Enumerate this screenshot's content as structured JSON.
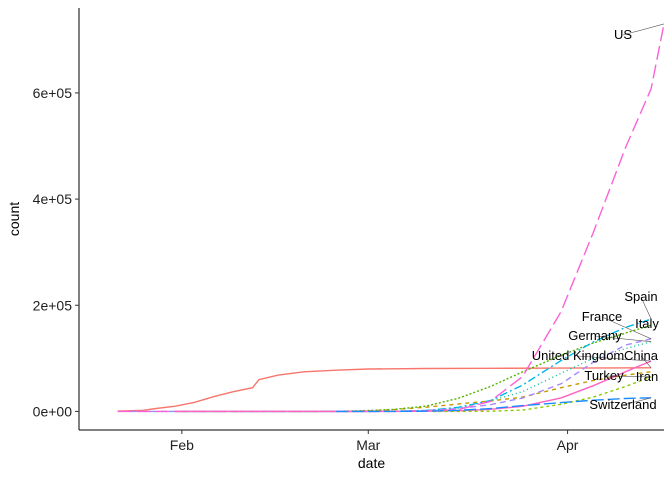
{
  "chart_data": {
    "type": "line",
    "title": "",
    "xlabel": "date",
    "ylabel": "count",
    "x_axis": {
      "scale": "date",
      "range": [
        "2020-01-16",
        "2020-04-16"
      ],
      "ticks": [
        {
          "date": "2020-02-01",
          "label": "Feb"
        },
        {
          "date": "2020-03-01",
          "label": "Mar"
        },
        {
          "date": "2020-04-01",
          "label": "Apr"
        }
      ]
    },
    "y_axis": {
      "range": [
        -35000,
        760000
      ],
      "ticks": [
        {
          "value": 0,
          "label": "0e+00"
        },
        {
          "value": 200000,
          "label": "2e+05"
        },
        {
          "value": 400000,
          "label": "4e+05"
        },
        {
          "value": 600000,
          "label": "6e+05"
        }
      ]
    },
    "grid": false,
    "legend": "direct labels at line ends",
    "series": [
      {
        "name": "China",
        "color": "#F8766D",
        "dash": "solid",
        "points": [
          [
            "2020-01-22",
            550
          ],
          [
            "2020-01-26",
            2100
          ],
          [
            "2020-01-28",
            5500
          ],
          [
            "2020-01-31",
            9800
          ],
          [
            "2020-02-03",
            17200
          ],
          [
            "2020-02-06",
            28000
          ],
          [
            "2020-02-09",
            37200
          ],
          [
            "2020-02-12",
            44700
          ],
          [
            "2020-02-13",
            59900
          ],
          [
            "2020-02-16",
            68500
          ],
          [
            "2020-02-20",
            74600
          ],
          [
            "2020-02-25",
            77700
          ],
          [
            "2020-03-01",
            79900
          ],
          [
            "2020-03-10",
            80800
          ],
          [
            "2020-03-20",
            81250
          ],
          [
            "2020-03-31",
            81550
          ],
          [
            "2020-04-08",
            81900
          ],
          [
            "2020-04-14",
            82250
          ]
        ]
      },
      {
        "name": "Iran",
        "color": "#C49A00",
        "dash": "4,4",
        "points": [
          [
            "2020-02-19",
            2
          ],
          [
            "2020-02-25",
            95
          ],
          [
            "2020-03-01",
            980
          ],
          [
            "2020-03-05",
            3500
          ],
          [
            "2020-03-10",
            8000
          ],
          [
            "2020-03-15",
            14000
          ],
          [
            "2020-03-20",
            19600
          ],
          [
            "2020-03-25",
            27000
          ],
          [
            "2020-03-31",
            44600
          ],
          [
            "2020-04-05",
            58200
          ],
          [
            "2020-04-10",
            68200
          ],
          [
            "2020-04-14",
            74900
          ]
        ]
      },
      {
        "name": "Italy",
        "color": "#53B400",
        "dash": "2,2",
        "points": [
          [
            "2020-01-31",
            2
          ],
          [
            "2020-02-21",
            20
          ],
          [
            "2020-02-25",
            320
          ],
          [
            "2020-03-01",
            1700
          ],
          [
            "2020-03-05",
            3900
          ],
          [
            "2020-03-10",
            10100
          ],
          [
            "2020-03-15",
            24700
          ],
          [
            "2020-03-20",
            47000
          ],
          [
            "2020-03-25",
            74400
          ],
          [
            "2020-03-31",
            105800
          ],
          [
            "2020-04-05",
            128900
          ],
          [
            "2020-04-10",
            147600
          ],
          [
            "2020-04-14",
            162500
          ]
        ]
      },
      {
        "name": "Germany",
        "color": "#00C094",
        "dash": "1,3",
        "points": [
          [
            "2020-01-27",
            1
          ],
          [
            "2020-02-25",
            18
          ],
          [
            "2020-03-01",
            130
          ],
          [
            "2020-03-05",
            480
          ],
          [
            "2020-03-10",
            1460
          ],
          [
            "2020-03-15",
            5800
          ],
          [
            "2020-03-20",
            19800
          ],
          [
            "2020-03-25",
            37300
          ],
          [
            "2020-03-31",
            71800
          ],
          [
            "2020-04-05",
            100100
          ],
          [
            "2020-04-10",
            118200
          ],
          [
            "2020-04-14",
            131300
          ]
        ]
      },
      {
        "name": "Spain",
        "color": "#00B6EB",
        "dash": "8,3,2,3",
        "points": [
          [
            "2020-02-01",
            1
          ],
          [
            "2020-02-25",
            6
          ],
          [
            "2020-03-01",
            84
          ],
          [
            "2020-03-05",
            260
          ],
          [
            "2020-03-10",
            1700
          ],
          [
            "2020-03-15",
            7800
          ],
          [
            "2020-03-20",
            20400
          ],
          [
            "2020-03-25",
            49500
          ],
          [
            "2020-03-31",
            95900
          ],
          [
            "2020-04-05",
            130800
          ],
          [
            "2020-04-10",
            158300
          ],
          [
            "2020-04-14",
            174000
          ]
        ]
      },
      {
        "name": "France",
        "color": "#A58AFF",
        "dash": "6,4",
        "points": [
          [
            "2020-01-24",
            2
          ],
          [
            "2020-02-25",
            14
          ],
          [
            "2020-03-01",
            130
          ],
          [
            "2020-03-05",
            420
          ],
          [
            "2020-03-10",
            1800
          ],
          [
            "2020-03-15",
            5400
          ],
          [
            "2020-03-20",
            12600
          ],
          [
            "2020-03-25",
            25200
          ],
          [
            "2020-03-31",
            52100
          ],
          [
            "2020-04-05",
            92800
          ],
          [
            "2020-04-10",
            125000
          ],
          [
            "2020-04-14",
            136800
          ]
        ]
      },
      {
        "name": "US",
        "color": "#FB61D7",
        "dash": "14,5",
        "points": [
          [
            "2020-01-22",
            1
          ],
          [
            "2020-02-25",
            15
          ],
          [
            "2020-03-01",
            75
          ],
          [
            "2020-03-05",
            230
          ],
          [
            "2020-03-10",
            990
          ],
          [
            "2020-03-15",
            3500
          ],
          [
            "2020-03-20",
            19100
          ],
          [
            "2020-03-25",
            65800
          ],
          [
            "2020-03-31",
            188100
          ],
          [
            "2020-04-05",
            337000
          ],
          [
            "2020-04-10",
            496500
          ],
          [
            "2020-04-14",
            607700
          ],
          [
            "2020-04-16",
            730000
          ]
        ]
      },
      {
        "name": "United Kingdom",
        "color": "#FF61C3",
        "dash": "solid",
        "points": [
          [
            "2020-01-31",
            2
          ],
          [
            "2020-02-25",
            13
          ],
          [
            "2020-03-01",
            36
          ],
          [
            "2020-03-05",
            115
          ],
          [
            "2020-03-10",
            380
          ],
          [
            "2020-03-15",
            1140
          ],
          [
            "2020-03-20",
            4000
          ],
          [
            "2020-03-25",
            9600
          ],
          [
            "2020-03-31",
            25500
          ],
          [
            "2020-04-05",
            48400
          ],
          [
            "2020-04-10",
            74600
          ],
          [
            "2020-04-14",
            94800
          ]
        ]
      },
      {
        "name": "Turkey",
        "color": "#8BCB00",
        "dash": "3,3",
        "points": [
          [
            "2020-03-11",
            1
          ],
          [
            "2020-03-15",
            18
          ],
          [
            "2020-03-20",
            360
          ],
          [
            "2020-03-25",
            2430
          ],
          [
            "2020-03-31",
            13500
          ],
          [
            "2020-04-05",
            27000
          ],
          [
            "2020-04-10",
            47000
          ],
          [
            "2020-04-14",
            65100
          ]
        ]
      },
      {
        "name": "Switzerland",
        "color": "#1A8CFF",
        "dash": "12,4",
        "points": [
          [
            "2020-02-25",
            1
          ],
          [
            "2020-03-01",
            42
          ],
          [
            "2020-03-05",
            90
          ],
          [
            "2020-03-10",
            490
          ],
          [
            "2020-03-15",
            2200
          ],
          [
            "2020-03-20",
            5300
          ],
          [
            "2020-03-25",
            10900
          ],
          [
            "2020-03-31",
            16600
          ],
          [
            "2020-04-05",
            21100
          ],
          [
            "2020-04-10",
            24300
          ],
          [
            "2020-04-14",
            25700
          ]
        ]
      }
    ],
    "labels": [
      {
        "text": "US",
        "series": "US"
      },
      {
        "text": "Spain",
        "series": "Spain"
      },
      {
        "text": "France",
        "series": "France"
      },
      {
        "text": "Italy",
        "series": "Italy"
      },
      {
        "text": "Germany",
        "series": "Germany"
      },
      {
        "text": "United Kingdom",
        "series": "United Kingdom"
      },
      {
        "text": "China",
        "series": "China"
      },
      {
        "text": "Turkey",
        "series": "Turkey"
      },
      {
        "text": "Iran",
        "series": "Iran"
      },
      {
        "text": "Switzerland",
        "series": "Switzerland"
      }
    ]
  }
}
